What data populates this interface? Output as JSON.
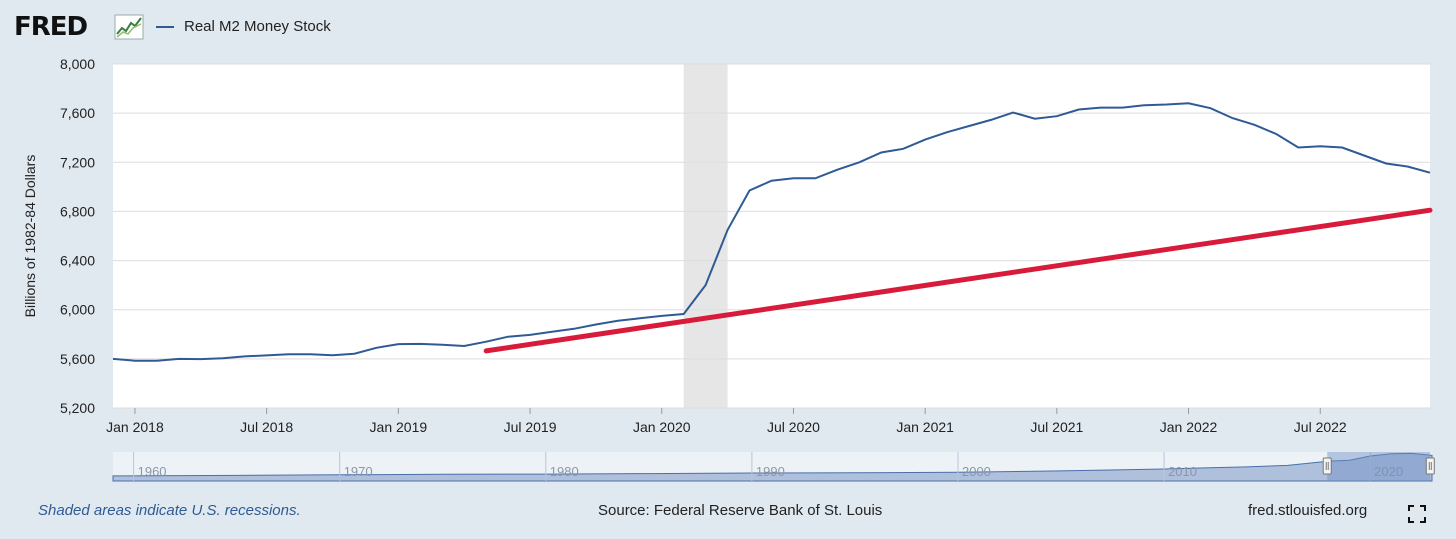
{
  "logo": {
    "text": "FRED"
  },
  "legend": {
    "series_name": "Real M2 Money Stock"
  },
  "footer": {
    "note": "Shaded areas indicate U.S. recessions.",
    "source": "Source: Federal Reserve Bank of St. Louis",
    "url": "fred.stlouisfed.org"
  },
  "icons": [
    "fred-logo-icon",
    "fullscreen-icon"
  ],
  "colors": {
    "series": "#2f5b95",
    "trend": "#d81b3a",
    "recession": "#e6e6e6",
    "navigator": "#7b98c8"
  },
  "chart_data": {
    "type": "line",
    "title": "",
    "ylabel": "Billions of 1982-84 Dollars",
    "xlabel": "",
    "ylim": [
      5200,
      8000
    ],
    "yticks": [
      "5,200",
      "5,600",
      "6,000",
      "6,400",
      "6,800",
      "7,200",
      "7,600",
      "8,000"
    ],
    "ytick_values": [
      5200,
      5600,
      6000,
      6400,
      6800,
      7200,
      7600,
      8000
    ],
    "xticks": [
      "Jan 2018",
      "Jul 2018",
      "Jan 2019",
      "Jul 2019",
      "Jan 2020",
      "Jul 2020",
      "Jan 2021",
      "Jul 2021",
      "Jan 2022",
      "Jul 2022"
    ],
    "xtick_dates": [
      "2018-01",
      "2018-07",
      "2019-01",
      "2019-07",
      "2020-01",
      "2020-07",
      "2021-01",
      "2021-07",
      "2022-01",
      "2022-07"
    ],
    "xlim": [
      "2017-12",
      "2022-12"
    ],
    "grid": true,
    "recessions": [
      {
        "start": "2020-02",
        "end": "2020-04"
      }
    ],
    "series": [
      {
        "name": "Real M2 Money Stock",
        "x": [
          "2017-12",
          "2018-01",
          "2018-02",
          "2018-03",
          "2018-04",
          "2018-05",
          "2018-06",
          "2018-07",
          "2018-08",
          "2018-09",
          "2018-10",
          "2018-11",
          "2018-12",
          "2019-01",
          "2019-02",
          "2019-03",
          "2019-04",
          "2019-05",
          "2019-06",
          "2019-07",
          "2019-08",
          "2019-09",
          "2019-10",
          "2019-11",
          "2019-12",
          "2020-01",
          "2020-02",
          "2020-03",
          "2020-04",
          "2020-05",
          "2020-06",
          "2020-07",
          "2020-08",
          "2020-09",
          "2020-10",
          "2020-11",
          "2020-12",
          "2021-01",
          "2021-02",
          "2021-03",
          "2021-04",
          "2021-05",
          "2021-06",
          "2021-07",
          "2021-08",
          "2021-09",
          "2021-10",
          "2021-11",
          "2021-12",
          "2022-01",
          "2022-02",
          "2022-03",
          "2022-04",
          "2022-05",
          "2022-06",
          "2022-07",
          "2022-08",
          "2022-09",
          "2022-10",
          "2022-11",
          "2022-12"
        ],
        "values": [
          5600,
          5585,
          5585,
          5600,
          5598,
          5605,
          5620,
          5628,
          5638,
          5638,
          5630,
          5642,
          5690,
          5720,
          5722,
          5715,
          5705,
          5740,
          5780,
          5795,
          5820,
          5845,
          5880,
          5910,
          5930,
          5950,
          5965,
          6200,
          6650,
          6970,
          7050,
          7070,
          7070,
          7140,
          7200,
          7280,
          7310,
          7385,
          7445,
          7495,
          7545,
          7605,
          7555,
          7575,
          7630,
          7645,
          7645,
          7665,
          7670,
          7680,
          7640,
          7560,
          7505,
          7430,
          7320,
          7330,
          7320,
          7255,
          7190,
          7165,
          7115
        ]
      }
    ],
    "annotations": [
      {
        "type": "trend-line",
        "x": [
          "2019-05",
          "2022-12"
        ],
        "y": [
          5665,
          6810
        ]
      }
    ],
    "navigator": {
      "tick_labels": [
        "1960",
        "1970",
        "1980",
        "1990",
        "2000",
        "2010",
        "2020"
      ],
      "tick_years": [
        1960,
        1970,
        1980,
        1990,
        2000,
        2010,
        2020
      ],
      "range_years": [
        1959,
        2023
      ],
      "selected_range": [
        "2017-12",
        "2022-12"
      ],
      "years": [
        1959,
        1965,
        1970,
        1975,
        1980,
        1985,
        1990,
        1995,
        2000,
        2005,
        2008,
        2010,
        2012,
        2014,
        2016,
        2018,
        2019,
        2020,
        2021,
        2022,
        2023
      ],
      "values": [
        1400,
        1550,
        1700,
        1850,
        1900,
        2050,
        2200,
        2250,
        2400,
        2800,
        3100,
        3300,
        3600,
        3900,
        4300,
        5500,
        5750,
        6900,
        7500,
        7600,
        7100
      ]
    }
  }
}
